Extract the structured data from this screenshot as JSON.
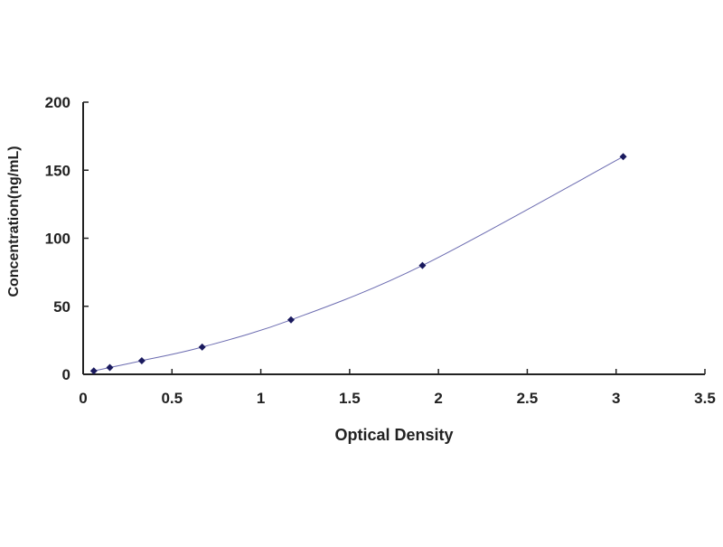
{
  "chart_data": {
    "type": "scatter",
    "title": "",
    "xlabel": "Optical Density",
    "ylabel": "Concentration(ng/mL)",
    "xlim": [
      0,
      3.5
    ],
    "ylim": [
      0,
      200
    ],
    "xticks": [
      "0",
      "0.5",
      "1",
      "1.5",
      "2",
      "2.5",
      "3",
      "3.5"
    ],
    "yticks": [
      "0",
      "50",
      "100",
      "150",
      "200"
    ],
    "grid": false,
    "series": [
      {
        "x": [
          0.06,
          0.15,
          0.33,
          0.67,
          1.17,
          1.91,
          3.04
        ],
        "y": [
          2.5,
          5,
          10,
          20,
          40,
          80,
          160
        ],
        "fit_curve": true,
        "marker_color": "#1a1a5e",
        "line_color": "#6b6bb0"
      }
    ]
  }
}
